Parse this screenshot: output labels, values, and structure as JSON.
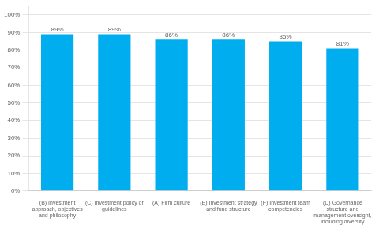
{
  "chart_data": {
    "type": "bar",
    "categories": [
      "(B) Investment\napproach, objectives\nand philosophy",
      "(C) Investment policy or\nguidelines",
      "(A) Firm culture",
      "(E) Investment strategy\nand fund structure",
      "(F) Investment team\ncompetencies",
      "(D) Governance\nstructure and\nmanagement oversight,\nincluding diversity"
    ],
    "values": [
      89,
      89,
      86,
      86,
      85,
      81
    ],
    "value_labels": [
      "89%",
      "89%",
      "86%",
      "86%",
      "85%",
      "81%"
    ],
    "data_labels": true,
    "color": "#00AEEF",
    "ylim": [
      0,
      105
    ],
    "yticks": [
      {
        "value": 0,
        "label": "0%"
      },
      {
        "value": 10,
        "label": "10%"
      },
      {
        "value": 20,
        "label": "20%"
      },
      {
        "value": 30,
        "label": "30%"
      },
      {
        "value": 40,
        "label": "40%"
      },
      {
        "value": 50,
        "label": "50%"
      },
      {
        "value": 60,
        "label": "60%"
      },
      {
        "value": 70,
        "label": "70%"
      },
      {
        "value": 80,
        "label": "80%"
      },
      {
        "value": 90,
        "label": "90%"
      },
      {
        "value": 100,
        "label": "100%"
      }
    ],
    "grid": true
  }
}
